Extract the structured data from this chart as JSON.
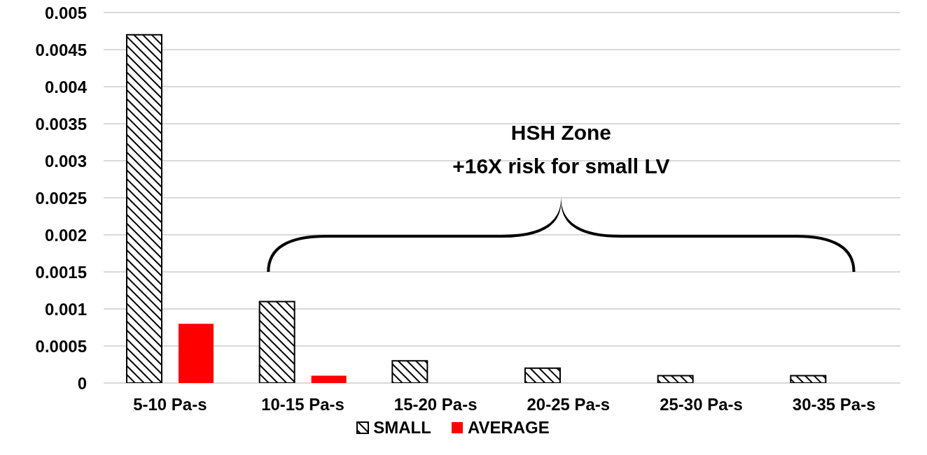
{
  "chart_data": {
    "type": "bar",
    "categories": [
      "5-10 Pa-s",
      "10-15 Pa-s",
      "15-20 Pa-s",
      "20-25 Pa-s",
      "25-30 Pa-s",
      "30-35 Pa-s"
    ],
    "series": [
      {
        "name": "SMALL",
        "color": "#000000",
        "values": [
          0.0047,
          0.0011,
          0.0003,
          0.0002,
          0.0001,
          0.0001
        ]
      },
      {
        "name": "AVERAGE",
        "color": "#ff0000",
        "values": [
          0.0008,
          0.0001,
          0,
          0,
          0,
          0
        ]
      }
    ],
    "ylim": [
      0,
      0.005
    ],
    "yticks": [
      0,
      0.0005,
      0.001,
      0.0015,
      0.002,
      0.0025,
      0.003,
      0.0035,
      0.004,
      0.0045,
      0.005
    ],
    "grid": "y",
    "legend": "bottom",
    "annotations": [
      "HSH Zone",
      "+16X risk for small LV"
    ]
  }
}
